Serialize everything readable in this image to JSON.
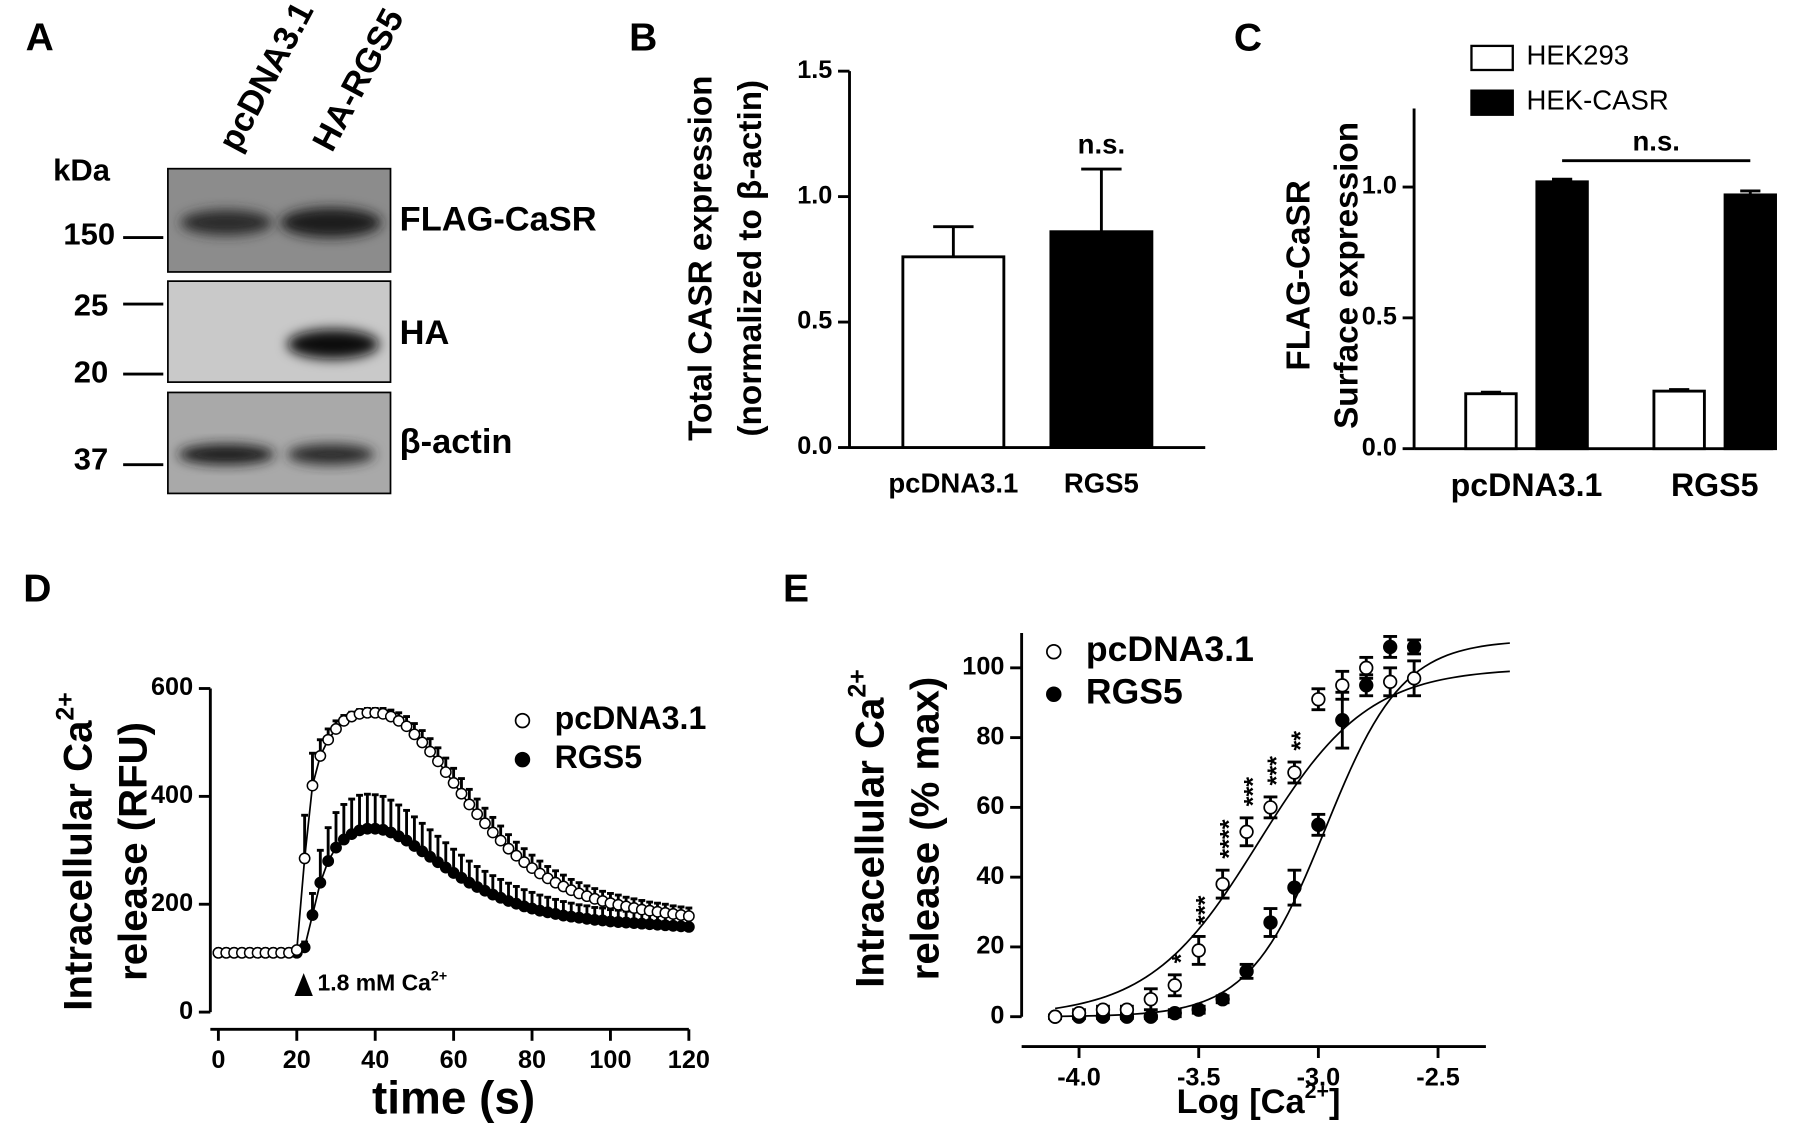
{
  "blot": {
    "panel": "A",
    "lanes": [
      "pcDNA3.1",
      "HA-RGS5"
    ],
    "unit": "kDa",
    "markers": [
      150,
      25,
      20,
      37
    ],
    "bands": [
      "FLAG-CaSR",
      "HA",
      "β-actin"
    ]
  },
  "chart_data": [
    {
      "type": "bar",
      "panel": "B",
      "ylabel": [
        {
          "text": "Total CASR expression"
        },
        {
          "text": "(normalized to β-actin)"
        }
      ],
      "categories": [
        "pcDNA3.1",
        "RGS5"
      ],
      "values": [
        0.76,
        0.86
      ],
      "errors": [
        0.12,
        0.25
      ],
      "colors": [
        "#ffffff",
        "#000000"
      ],
      "error_bars": "upper",
      "value_labels": [
        null,
        "n.s."
      ],
      "ylim": [
        0,
        1.5
      ],
      "yticks": [
        {
          "value": 0,
          "label": "0.0"
        },
        0.5,
        {
          "value": 1,
          "label": "1.0"
        },
        1.5
      ]
    },
    {
      "type": "bar",
      "panel": "C",
      "ylabel": [
        {
          "text": "FLAG-CaSR"
        },
        {
          "text": "Surface expression"
        }
      ],
      "categories": [
        "pcDNA3.1",
        "RGS5"
      ],
      "series": [
        {
          "name": "HEK293",
          "color": "#ffffff",
          "values": [
            0.21,
            0.22
          ],
          "errors": [
            0.006,
            0.006
          ]
        },
        {
          "name": "HEK-CASR",
          "color": "#000000",
          "values": [
            1.02,
            0.97
          ],
          "errors": [
            0.01,
            0.015
          ]
        }
      ],
      "error_bars": "both",
      "annotation": "n.s.",
      "legend": "top-left",
      "ylim": [
        0,
        1.3
      ],
      "yticks": [
        {
          "value": 0,
          "label": "0.0"
        },
        0.5,
        {
          "value": 1,
          "label": "1.0"
        }
      ]
    },
    {
      "type": "line",
      "panel": "D",
      "ylabel": [
        {
          "text": "Intracellular Ca",
          "sup": "2+"
        },
        {
          "text": "release (RFU)"
        }
      ],
      "xlabel": {
        "text": "time (s)"
      },
      "annotation": {
        "text": "1.8 mM Ca",
        "sup": "2+"
      },
      "x": [
        0,
        2,
        4,
        6,
        8,
        10,
        12,
        14,
        16,
        18,
        20,
        22,
        24,
        26,
        28,
        30,
        32,
        34,
        36,
        38,
        40,
        42,
        44,
        46,
        48,
        50,
        52,
        54,
        56,
        58,
        60,
        62,
        64,
        66,
        68,
        70,
        72,
        74,
        76,
        78,
        80,
        82,
        84,
        86,
        88,
        90,
        92,
        94,
        96,
        98,
        100,
        102,
        104,
        106,
        108,
        110,
        112,
        114,
        116,
        118,
        120
      ],
      "series": [
        {
          "name": "pcDNA3.1",
          "color": "#ffffff",
          "values": [
            110,
            110,
            110,
            110,
            110,
            110,
            110,
            110,
            110,
            110,
            115,
            285,
            420,
            475,
            505,
            525,
            540,
            548,
            553,
            555,
            555,
            553,
            548,
            540,
            530,
            515,
            500,
            483,
            465,
            445,
            425,
            405,
            385,
            367,
            350,
            333,
            318,
            303,
            290,
            278,
            267,
            257,
            248,
            240,
            233,
            226,
            220,
            215,
            210,
            206,
            202,
            199,
            196,
            193,
            190,
            188,
            186,
            184,
            182,
            180,
            178
          ],
          "errors": [
            5,
            5,
            5,
            5,
            5,
            5,
            5,
            5,
            5,
            5,
            5,
            80,
            60,
            30,
            20,
            15,
            10,
            8,
            8,
            8,
            8,
            10,
            12,
            15,
            18,
            20,
            22,
            24,
            25,
            26,
            27,
            28,
            28,
            28,
            28,
            28,
            27,
            26,
            25,
            25,
            24,
            23,
            22,
            22,
            21,
            20,
            20,
            19,
            19,
            18,
            18,
            18,
            17,
            17,
            17,
            16,
            16,
            16,
            15,
            15,
            15
          ]
        },
        {
          "name": "RGS5",
          "color": "#000000",
          "values": [
            110,
            110,
            110,
            110,
            110,
            110,
            110,
            110,
            110,
            110,
            110,
            120,
            180,
            240,
            280,
            305,
            320,
            330,
            337,
            340,
            340,
            338,
            333,
            326,
            318,
            308,
            298,
            288,
            278,
            268,
            258,
            249,
            240,
            232,
            225,
            218,
            212,
            206,
            201,
            196,
            192,
            188,
            185,
            182,
            179,
            177,
            175,
            173,
            171,
            170,
            168,
            167,
            166,
            165,
            164,
            163,
            162,
            161,
            160,
            159,
            158
          ],
          "errors": [
            5,
            5,
            5,
            5,
            5,
            5,
            5,
            5,
            5,
            5,
            5,
            10,
            40,
            60,
            62,
            65,
            65,
            65,
            65,
            64,
            63,
            62,
            60,
            58,
            56,
            54,
            52,
            50,
            48,
            46,
            44,
            42,
            40,
            38,
            36,
            35,
            34,
            33,
            32,
            31,
            30,
            29,
            28,
            27,
            26,
            25,
            24,
            24,
            23,
            23,
            22,
            22,
            21,
            21,
            20,
            20,
            19,
            19,
            18,
            18,
            18
          ]
        }
      ],
      "error_bars": "upper",
      "legend": "top-right",
      "xlim": [
        0,
        120
      ],
      "xticks": [
        0,
        20,
        40,
        60,
        80,
        100,
        120
      ],
      "ylim": [
        0,
        600
      ],
      "yticks": [
        0,
        200,
        400,
        600
      ]
    },
    {
      "type": "scatter",
      "panel": "E",
      "ylabel": [
        {
          "text": "Intracellular Ca",
          "sup": "2+"
        },
        {
          "text": "release (% max)"
        }
      ],
      "xlabel": {
        "text": "Log [Ca",
        "sup": "2+",
        "tail": "]"
      },
      "x": [
        -4.1,
        -4.0,
        -3.9,
        -3.8,
        -3.7,
        -3.6,
        -3.5,
        -3.4,
        -3.3,
        -3.2,
        -3.1,
        -3.0,
        -2.9,
        -2.8,
        -2.7,
        -2.6
      ],
      "series": [
        {
          "name": "pcDNA3.1",
          "color": "#ffffff",
          "values": [
            0,
            1,
            2,
            2,
            5,
            9,
            19,
            38,
            53,
            60,
            70,
            91,
            95,
            100,
            96,
            97
          ],
          "errors": [
            0.5,
            1,
            1,
            1,
            3,
            3,
            4,
            4,
            4,
            3,
            3,
            3,
            4,
            3,
            4,
            5
          ],
          "significance": [
            null,
            null,
            null,
            null,
            null,
            "*",
            "***",
            "****",
            "***",
            "***",
            "**",
            null,
            null,
            null,
            null,
            null
          ],
          "fit": {
            "bottom": 0,
            "top": 100,
            "log_ec50": -3.25,
            "hill": 1.9
          }
        },
        {
          "name": "RGS5",
          "color": "#000000",
          "values": [
            0,
            0,
            0,
            0,
            0,
            1,
            2,
            5,
            13,
            27,
            37,
            55,
            85,
            95,
            106,
            106
          ],
          "errors": [
            0.5,
            0.5,
            0.5,
            0.5,
            0.5,
            1,
            1,
            1,
            2,
            4,
            5,
            3,
            8,
            3,
            3,
            2
          ],
          "fit": {
            "bottom": 0,
            "top": 108,
            "log_ec50": -2.97,
            "hill": 2.7
          }
        }
      ],
      "error_bars": "both",
      "legend": "top-left",
      "xlim": [
        -4.2,
        -2.3
      ],
      "xticks": [
        {
          "value": -4,
          "label": "-4.0"
        },
        -3.5,
        {
          "value": -3,
          "label": "-3.0"
        },
        -2.5
      ],
      "ylim": [
        0,
        110
      ],
      "yticks": [
        0,
        20,
        40,
        60,
        80,
        100
      ]
    }
  ]
}
